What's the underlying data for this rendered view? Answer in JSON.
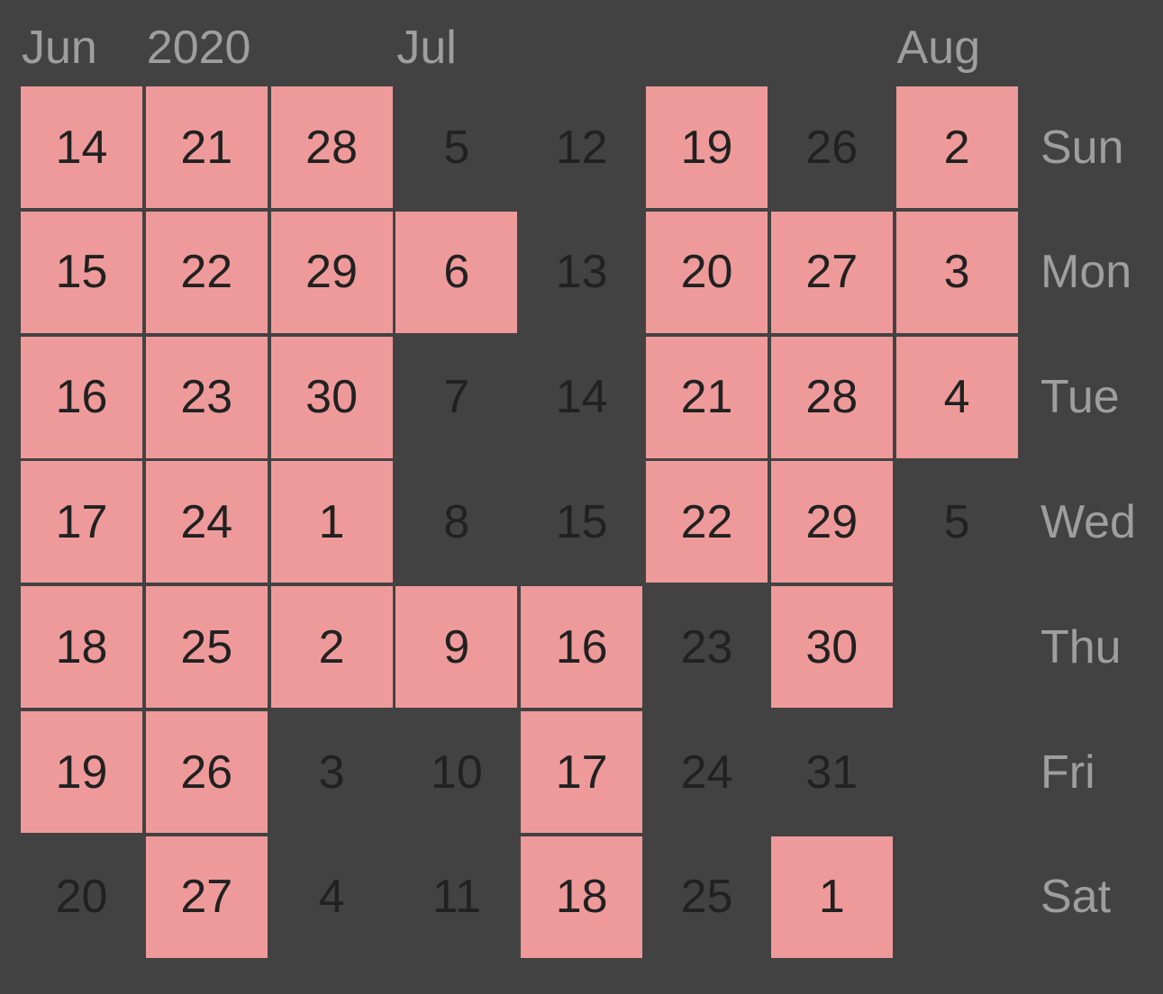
{
  "months": [
    {
      "label": "Jun",
      "col": 0
    },
    {
      "label": "2020",
      "col": 1
    },
    {
      "label": "Jul",
      "col": 3
    },
    {
      "label": "Aug",
      "col": 7
    }
  ],
  "weekdays": [
    "Sun",
    "Mon",
    "Tue",
    "Wed",
    "Thu",
    "Fri",
    "Sat"
  ],
  "weeks": [
    [
      {
        "d": "14",
        "on": true
      },
      {
        "d": "15",
        "on": true
      },
      {
        "d": "16",
        "on": true
      },
      {
        "d": "17",
        "on": true
      },
      {
        "d": "18",
        "on": true
      },
      {
        "d": "19",
        "on": true
      },
      {
        "d": "20",
        "on": false
      }
    ],
    [
      {
        "d": "21",
        "on": true
      },
      {
        "d": "22",
        "on": true
      },
      {
        "d": "23",
        "on": true
      },
      {
        "d": "24",
        "on": true
      },
      {
        "d": "25",
        "on": true
      },
      {
        "d": "26",
        "on": true
      },
      {
        "d": "27",
        "on": true
      }
    ],
    [
      {
        "d": "28",
        "on": true
      },
      {
        "d": "29",
        "on": true
      },
      {
        "d": "30",
        "on": true
      },
      {
        "d": "1",
        "on": true
      },
      {
        "d": "2",
        "on": true
      },
      {
        "d": "3",
        "on": false
      },
      {
        "d": "4",
        "on": false
      }
    ],
    [
      {
        "d": "5",
        "on": false
      },
      {
        "d": "6",
        "on": true
      },
      {
        "d": "7",
        "on": false
      },
      {
        "d": "8",
        "on": false
      },
      {
        "d": "9",
        "on": true
      },
      {
        "d": "10",
        "on": false
      },
      {
        "d": "11",
        "on": false
      }
    ],
    [
      {
        "d": "12",
        "on": false
      },
      {
        "d": "13",
        "on": false
      },
      {
        "d": "14",
        "on": false
      },
      {
        "d": "15",
        "on": false
      },
      {
        "d": "16",
        "on": true
      },
      {
        "d": "17",
        "on": true
      },
      {
        "d": "18",
        "on": true
      }
    ],
    [
      {
        "d": "19",
        "on": true
      },
      {
        "d": "20",
        "on": true
      },
      {
        "d": "21",
        "on": true
      },
      {
        "d": "22",
        "on": true
      },
      {
        "d": "23",
        "on": false
      },
      {
        "d": "24",
        "on": false
      },
      {
        "d": "25",
        "on": false
      }
    ],
    [
      {
        "d": "26",
        "on": false
      },
      {
        "d": "27",
        "on": true
      },
      {
        "d": "28",
        "on": true
      },
      {
        "d": "29",
        "on": true
      },
      {
        "d": "30",
        "on": true
      },
      {
        "d": "31",
        "on": false
      },
      {
        "d": "1",
        "on": true
      }
    ],
    [
      {
        "d": "2",
        "on": true
      },
      {
        "d": "3",
        "on": true
      },
      {
        "d": "4",
        "on": true
      },
      {
        "d": "5",
        "on": false
      },
      null,
      null,
      null
    ]
  ],
  "colors": {
    "background": "#424242",
    "active_cell": "#ef9a9a",
    "day_text": "#212121",
    "label_text": "#9e9e9e"
  }
}
